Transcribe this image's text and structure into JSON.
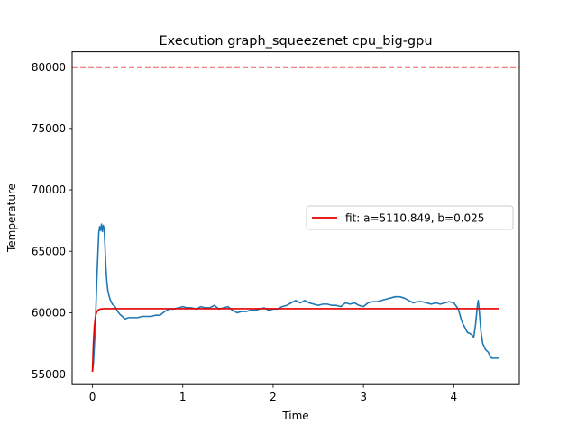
{
  "chart_data": {
    "type": "line",
    "title": "Execution graph_squeezenet cpu_big-gpu",
    "xlabel": "Time",
    "ylabel": "Temperature",
    "xlim": [
      -0.225,
      4.725
    ],
    "ylim": [
      54150,
      81250
    ],
    "xticks": [
      0,
      1,
      2,
      3,
      4
    ],
    "xtick_labels": [
      "0",
      "1",
      "2",
      "3",
      "4"
    ],
    "yticks": [
      55000,
      60000,
      65000,
      70000,
      75000,
      80000
    ],
    "ytick_labels": [
      "55000",
      "60000",
      "65000",
      "70000",
      "75000",
      "80000"
    ],
    "grid": false,
    "legend_position": "center-right",
    "threshold": {
      "y": 80000,
      "color": "#e60000",
      "style": "dashed"
    },
    "series": [
      {
        "color": "#1f77b4",
        "x": [
          0,
          0.01,
          0.03,
          0.05,
          0.07,
          0.08,
          0.09,
          0.1,
          0.11,
          0.12,
          0.13,
          0.14,
          0.15,
          0.16,
          0.17,
          0.18,
          0.19,
          0.2,
          0.22,
          0.25,
          0.28,
          0.3,
          0.33,
          0.36,
          0.4,
          0.44,
          0.5,
          0.55,
          0.6,
          0.65,
          0.7,
          0.75,
          0.8,
          0.85,
          0.9,
          0.95,
          1.0,
          1.05,
          1.1,
          1.15,
          1.2,
          1.25,
          1.3,
          1.35,
          1.4,
          1.45,
          1.5,
          1.55,
          1.6,
          1.65,
          1.7,
          1.75,
          1.8,
          1.85,
          1.9,
          1.95,
          2.0,
          2.05,
          2.1,
          2.15,
          2.2,
          2.25,
          2.3,
          2.35,
          2.4,
          2.45,
          2.5,
          2.55,
          2.6,
          2.65,
          2.7,
          2.75,
          2.8,
          2.85,
          2.9,
          2.95,
          3.0,
          3.05,
          3.1,
          3.15,
          3.2,
          3.25,
          3.3,
          3.35,
          3.4,
          3.45,
          3.5,
          3.55,
          3.6,
          3.65,
          3.7,
          3.75,
          3.8,
          3.85,
          3.9,
          3.95,
          4.0,
          4.05,
          4.08,
          4.1,
          4.13,
          4.15,
          4.18,
          4.2,
          4.22,
          4.24,
          4.26,
          4.27,
          4.28,
          4.3,
          4.32,
          4.35,
          4.38,
          4.4,
          4.42,
          4.44,
          4.46,
          4.5
        ],
        "y": [
          55200,
          55800,
          58500,
          63000,
          66500,
          67000,
          66700,
          67200,
          66600,
          67100,
          66800,
          65200,
          63500,
          62500,
          61800,
          61500,
          61200,
          61000,
          60700,
          60500,
          60100,
          59900,
          59700,
          59500,
          59600,
          59600,
          59600,
          59700,
          59700,
          59700,
          59800,
          59800,
          60100,
          60300,
          60300,
          60400,
          60500,
          60400,
          60400,
          60300,
          60500,
          60400,
          60400,
          60600,
          60300,
          60400,
          60500,
          60200,
          60000,
          60100,
          60100,
          60200,
          60200,
          60300,
          60400,
          60200,
          60300,
          60300,
          60500,
          60600,
          60800,
          61000,
          60800,
          61000,
          60800,
          60700,
          60600,
          60700,
          60700,
          60600,
          60600,
          60500,
          60800,
          60700,
          60800,
          60600,
          60500,
          60800,
          60900,
          60900,
          61000,
          61100,
          61200,
          61300,
          61300,
          61200,
          61000,
          60800,
          60900,
          60900,
          60800,
          60700,
          60800,
          60700,
          60800,
          60900,
          60800,
          60300,
          59500,
          59100,
          58700,
          58400,
          58300,
          58200,
          58000,
          59000,
          60500,
          61000,
          60300,
          58500,
          57500,
          57000,
          56800,
          56500,
          56300,
          56300,
          56300,
          56300
        ]
      },
      {
        "name": "fit: a=5110.849, b=0.025",
        "color": "#e60000",
        "x": [
          0,
          0.01,
          0.02,
          0.03,
          0.04,
          0.05,
          0.06,
          0.07,
          0.08,
          0.09,
          0.1,
          0.12,
          0.15,
          0.2,
          0.3,
          0.5,
          1.0,
          2.0,
          3.0,
          4.0,
          4.5
        ],
        "y": [
          55200,
          57500,
          58800,
          59500,
          59900,
          60100,
          60200,
          60250,
          60280,
          60300,
          60310,
          60320,
          60330,
          60330,
          60330,
          60330,
          60330,
          60330,
          60330,
          60330,
          60330
        ]
      }
    ]
  }
}
